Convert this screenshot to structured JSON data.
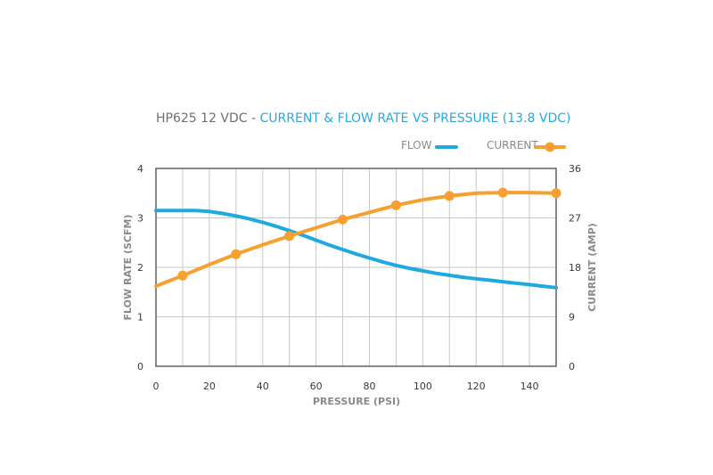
{
  "chart_data": {
    "type": "line",
    "title_prefix": "HP625 12 VDC - ",
    "title_main": "CURRENT & FLOW RATE VS PRESSURE (13.8 VDC)",
    "xlabel": "PRESSURE (PSI)",
    "ylabel_left": "FLOW RATE (SCFM)",
    "ylabel_right": "CURRENT (AMP)",
    "xlim": [
      0,
      150
    ],
    "ylim_left": [
      0,
      4
    ],
    "ylim_right": [
      0,
      36
    ],
    "x_ticks": [
      "0",
      "20",
      "40",
      "60",
      "80",
      "100",
      "120",
      "140"
    ],
    "y_ticks_left": [
      "0",
      "1",
      "2",
      "3",
      "4"
    ],
    "y_ticks_right": [
      "0",
      "9",
      "18",
      "27",
      "36"
    ],
    "grid": true,
    "legend_position": "top-right",
    "series": [
      {
        "name": "FLOW",
        "axis": "left",
        "color": "#1ea9e1",
        "markers": false,
        "x": [
          0,
          5,
          10,
          15,
          20,
          25,
          30,
          35,
          40,
          45,
          50,
          55,
          60,
          65,
          70,
          75,
          80,
          85,
          90,
          95,
          100,
          105,
          110,
          115,
          120,
          125,
          130,
          135,
          140,
          145,
          150
        ],
        "y": [
          3.15,
          3.15,
          3.15,
          3.15,
          3.13,
          3.09,
          3.04,
          2.98,
          2.91,
          2.83,
          2.74,
          2.65,
          2.55,
          2.45,
          2.36,
          2.27,
          2.19,
          2.11,
          2.04,
          1.98,
          1.93,
          1.88,
          1.84,
          1.8,
          1.77,
          1.74,
          1.71,
          1.68,
          1.65,
          1.62,
          1.59
        ]
      },
      {
        "name": "CURRENT",
        "axis": "right",
        "color": "#f7a030",
        "markers": true,
        "x": [
          0,
          10,
          20,
          30,
          40,
          50,
          60,
          70,
          80,
          90,
          100,
          110,
          120,
          130,
          140,
          150
        ],
        "y": [
          14.6,
          16.5,
          18.5,
          20.4,
          22.1,
          23.7,
          25.2,
          26.7,
          28.0,
          29.3,
          30.3,
          31.0,
          31.5,
          31.6,
          31.6,
          31.5
        ],
        "marker_x": [
          10,
          30,
          50,
          70,
          90,
          110,
          130,
          150
        ],
        "marker_y": [
          16.5,
          20.4,
          23.7,
          26.7,
          29.3,
          31.0,
          31.6,
          31.5
        ]
      }
    ]
  }
}
